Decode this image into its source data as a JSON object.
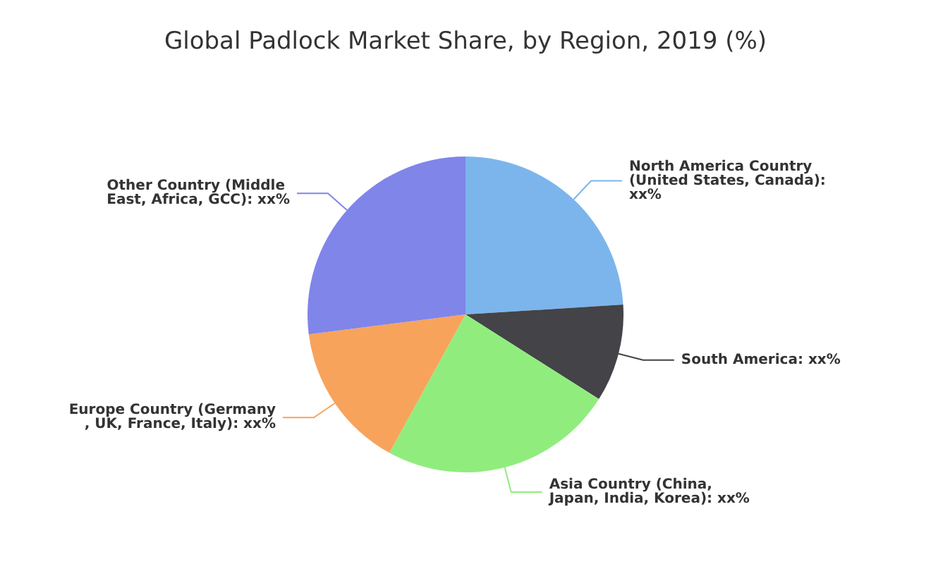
{
  "chart_data": {
    "type": "pie",
    "title": "Global Padlock Market Share, by Region, 2019 (%)",
    "categories": [
      "North America Country (United States, Canada): xx%",
      "South America: xx%",
      "Asia Country (China, Japan, India, Korea): xx%",
      "Europe Country (Germany, UK, France, Italy): xx%",
      "Other Country (Middle East, Africa, GCC): xx%"
    ],
    "values": [
      24,
      10,
      24,
      15,
      27
    ],
    "colors": [
      "#7cb5ec",
      "#434348",
      "#90ed7d",
      "#f7a35c",
      "#8085e9"
    ],
    "legend": false
  }
}
